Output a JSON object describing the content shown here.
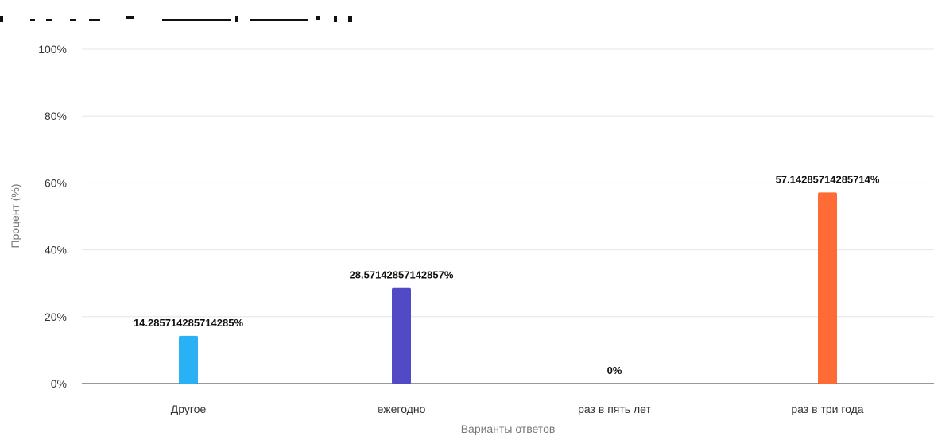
{
  "chart_data": {
    "type": "bar",
    "categories": [
      "Другое",
      "ежегодно",
      "раз в пять лет",
      "раз в три года"
    ],
    "values": [
      14.285714285714285,
      28.57142857142857,
      0,
      57.14285714285714
    ],
    "data_labels": [
      "14.285714285714285%",
      "28.57142857142857%",
      "0%",
      "57.14285714285714%"
    ],
    "colors": [
      "#2ab0f5",
      "#5249c4",
      "#2ab0f5",
      "#ff6b35"
    ],
    "xlabel": "Варианты ответов",
    "ylabel": "Процент (%)",
    "ylim": [
      0,
      100
    ],
    "yticks": [
      0,
      20,
      40,
      60,
      80,
      100
    ],
    "ytick_labels": [
      "0%",
      "20%",
      "40%",
      "60%",
      "80%",
      "100%"
    ],
    "grid": true
  }
}
